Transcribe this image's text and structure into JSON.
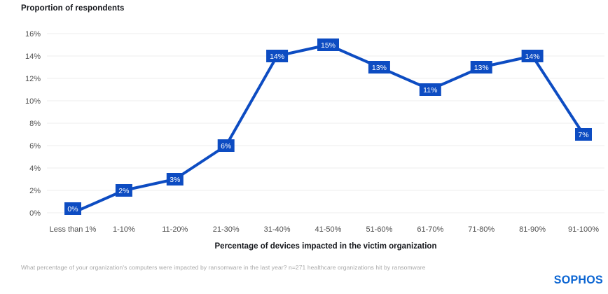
{
  "footnote": "What percentage of your organization's computers were impacted by ransomware in the last year? n=271 healthcare organizations hit by ransomware",
  "logo": "SOPHOS",
  "colors": {
    "line": "#0d4cc2",
    "label_box_bg": "#0d4cc2",
    "label_box_text": "#ffffff",
    "grid": "#ededed",
    "axis_tick_text": "#4f4f4f",
    "title_text": "#15171c",
    "footnote_text": "#a8a8a8",
    "logo_blue": "#0a64d2"
  },
  "chart_data": {
    "type": "line",
    "title": "Proportion of respondents",
    "xlabel": "Percentage of devices impacted in the victim organization",
    "ylabel": "",
    "categories": [
      "Less than 1%",
      "1-10%",
      "11-20%",
      "21-30%",
      "31-40%",
      "41-50%",
      "51-60%",
      "61-70%",
      "71-80%",
      "81-90%",
      "91-100%"
    ],
    "values": [
      0,
      2,
      3,
      6,
      14,
      15,
      13,
      11,
      13,
      14,
      7
    ],
    "point_labels": [
      "0%",
      "2%",
      "3%",
      "6%",
      "14%",
      "15%",
      "13%",
      "11%",
      "13%",
      "14%",
      "7%"
    ],
    "ylim": [
      0,
      16
    ],
    "ytick_step": 2,
    "ytick_suffix": "%",
    "grid": true,
    "legend": false
  }
}
